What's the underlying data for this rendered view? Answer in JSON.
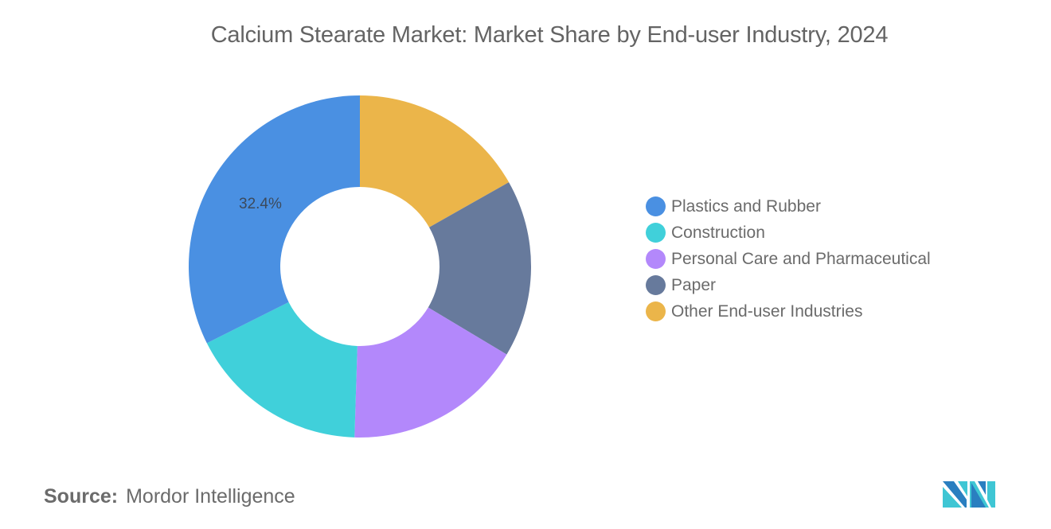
{
  "header": {
    "title": "Calcium Stearate Market: Market Share by End-user Industry, 2024"
  },
  "legend": {
    "items": [
      {
        "label": "Plastics and Rubber",
        "color": "#4A90E2"
      },
      {
        "label": "Construction",
        "color": "#40D0DA"
      },
      {
        "label": "Personal Care and Pharmaceutical",
        "color": "#B388FB"
      },
      {
        "label": "Paper",
        "color": "#677A9C"
      },
      {
        "label": "Other End-user Industries",
        "color": "#EBB54A"
      }
    ]
  },
  "footer": {
    "source_label": "Source:",
    "source_value": "Mordor Intelligence",
    "logo_icon": "mordor-intelligence-logo-icon"
  },
  "chart_data": {
    "type": "pie",
    "variant": "donut",
    "title": "Calcium Stearate Market: Market Share by End-user Industry, 2024",
    "categories": [
      "Plastics and Rubber",
      "Construction",
      "Personal Care and Pharmaceutical",
      "Paper",
      "Other End-user Industries"
    ],
    "values": [
      32.4,
      17.1,
      16.9,
      16.8,
      16.8
    ],
    "colors": [
      "#4A90E2",
      "#40D0DA",
      "#B388FB",
      "#677A9C",
      "#EBB54A"
    ],
    "data_labels": [
      {
        "category": "Plastics and Rubber",
        "text": "32.4%"
      }
    ],
    "legend_position": "right",
    "start_angle_deg": 0,
    "direction": "counterclockwise-from-top for listed order (Other starts at 12 o'clock going clockwise)"
  }
}
